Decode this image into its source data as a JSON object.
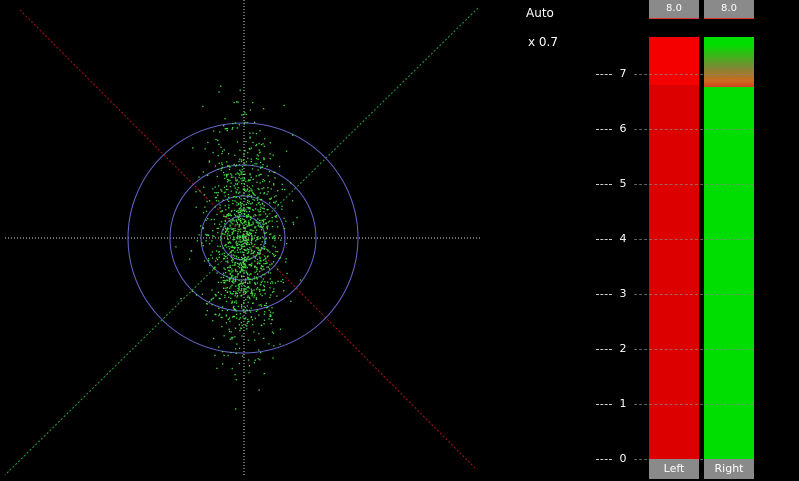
{
  "controls": {
    "mode_label": "Auto",
    "zoom_label": "x 0.7"
  },
  "meters": {
    "left": {
      "label": "Left",
      "peak": "8.0",
      "level": 7.8,
      "peak_hold": 6.8
    },
    "right": {
      "label": "Right",
      "peak": "8.0",
      "level": 7.8,
      "peak_hold": 6.8
    },
    "scale_max": 7.8,
    "ticks": [
      "0",
      "1",
      "2",
      "3",
      "4",
      "5",
      "6",
      "7"
    ],
    "colors": {
      "left": "#dd0000",
      "right": "#00dd00"
    }
  },
  "scope": {
    "dot_color": "#44dd44",
    "ring_color": "#6666cc",
    "axis_color": "#dddddd",
    "diagonal_left_color": "#b01020",
    "diagonal_right_color": "#20a040"
  }
}
